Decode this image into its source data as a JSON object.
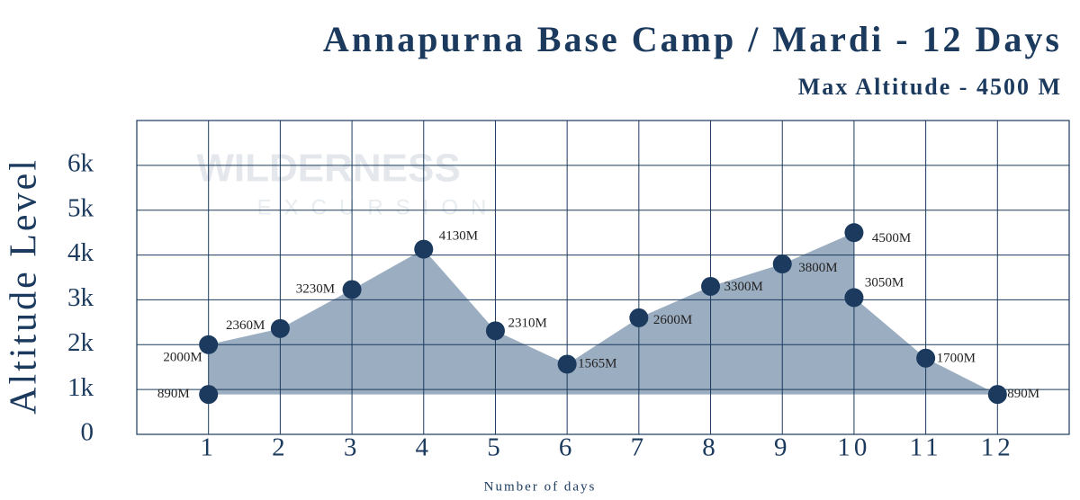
{
  "chart_data": {
    "type": "area",
    "title": "Annapurna Base Camp / Mardi - 12 Days",
    "subtitle": "Max Altitude - 4500 M",
    "watermark": [
      "WILDERNESS",
      "EXCURSION"
    ],
    "y_label": "Altitude Level",
    "x_label": "Number of days",
    "x": [
      1,
      1,
      2,
      3,
      4,
      5,
      6,
      7,
      8,
      9,
      10,
      10,
      11,
      12
    ],
    "values": [
      890,
      2000,
      2360,
      3230,
      4130,
      2310,
      1565,
      2600,
      3300,
      3800,
      4500,
      3050,
      1700,
      890
    ],
    "value_labels": [
      "890M",
      "2000M",
      "2360M",
      "3230M",
      "4130M",
      "2310M",
      "1565M",
      "2600M",
      "3300M",
      "3800M",
      "4500M",
      "3050M",
      "1700M",
      "890M"
    ],
    "color": "#1b3a5e",
    "area_color": "#9badc0",
    "xlim": [
      0,
      13
    ],
    "xticks": [
      1,
      2,
      3,
      4,
      5,
      6,
      7,
      8,
      9,
      10,
      11,
      12
    ],
    "ylim": [
      0,
      7000
    ],
    "yticks": [
      0,
      {
        "value": 1000,
        "label": "1k"
      },
      {
        "value": 2000,
        "label": "2k"
      },
      {
        "value": 3000,
        "label": "3k"
      },
      {
        "value": 4000,
        "label": "4k"
      },
      {
        "value": 5000,
        "label": "5k"
      },
      {
        "value": 6000,
        "label": "6k"
      }
    ],
    "grid": true
  }
}
